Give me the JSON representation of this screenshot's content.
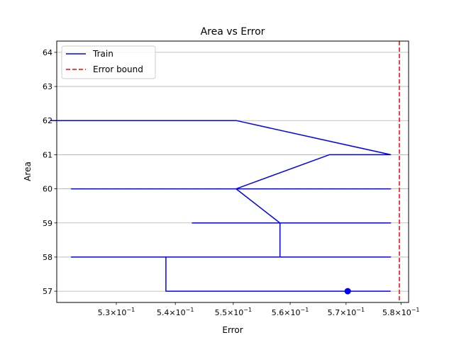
{
  "chart_data": {
    "type": "line",
    "title": "Area vs Error",
    "xlabel": "Error",
    "ylabel": "Area",
    "xscale": "log",
    "xlim": [
      0.5201,
      0.5814
    ],
    "ylim": [
      56.67,
      64.33
    ],
    "grid": "horizontal",
    "legend_position": "upper left",
    "x_tick_labels": [
      {
        "value": 0.53,
        "mantissa": "5.3",
        "base": "10",
        "exp": "−1"
      },
      {
        "value": 0.54,
        "mantissa": "5.4",
        "base": "10",
        "exp": "−1"
      },
      {
        "value": 0.55,
        "mantissa": "5.5",
        "base": "10",
        "exp": "−1"
      },
      {
        "value": 0.56,
        "mantissa": "5.6",
        "base": "10",
        "exp": "−1"
      },
      {
        "value": 0.57,
        "mantissa": "5.7",
        "base": "10",
        "exp": "−1"
      },
      {
        "value": 0.58,
        "mantissa": "5.8",
        "base": "10",
        "exp": "−1"
      }
    ],
    "y_ticks": [
      57,
      58,
      59,
      60,
      61,
      62,
      63,
      64
    ],
    "series": [
      {
        "name": "Train",
        "color": "#0000ff",
        "x": [
          0.5781,
          0.5384,
          0.5384,
          0.5225,
          0.5781,
          0.5582,
          0.5582,
          0.5429,
          0.5781,
          0.5582,
          0.5505,
          0.5225,
          0.5781,
          0.5505,
          0.567,
          0.5781,
          0.5505,
          0.519
        ],
        "y": [
          57,
          57,
          58,
          58,
          58,
          58,
          59,
          59,
          59,
          59,
          60,
          60,
          60,
          60,
          61,
          61,
          62,
          62
        ],
        "marker": {
          "x": 0.5703,
          "y": 57
        }
      }
    ],
    "reference_lines": [
      {
        "name": "Error bound",
        "orientation": "vertical",
        "x": 0.5797,
        "color": "#ff0000",
        "style": "dashed"
      }
    ]
  }
}
